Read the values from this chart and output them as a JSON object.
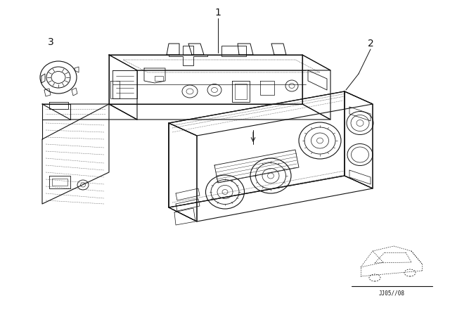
{
  "background_color": "#ffffff",
  "line_color": "#111111",
  "label_1": "1",
  "label_2": "2",
  "label_3": "3",
  "watermark": "JJ05//08",
  "fig_width": 6.4,
  "fig_height": 4.48,
  "dpi": 100
}
